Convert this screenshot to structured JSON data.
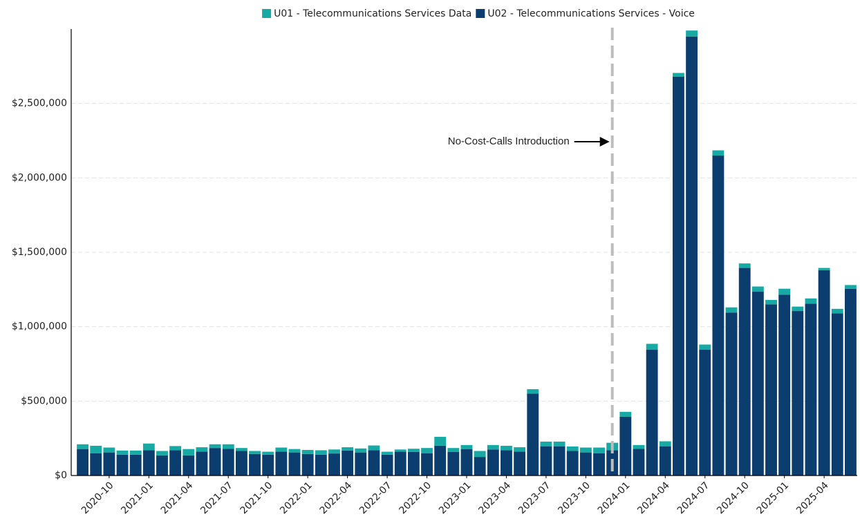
{
  "chart_data": {
    "type": "stacked-bar",
    "annotation": "No-Cost-Calls Introduction",
    "categories": [
      null,
      null,
      "2020-10",
      null,
      null,
      "2021-01",
      null,
      null,
      "2021-04",
      null,
      null,
      "2021-07",
      null,
      null,
      "2021-10",
      null,
      null,
      "2022-01",
      null,
      null,
      "2022-04",
      null,
      null,
      "2022-07",
      null,
      null,
      "2022-10",
      null,
      null,
      "2023-01",
      null,
      null,
      "2023-04",
      null,
      null,
      "2023-07",
      null,
      null,
      "2023-10",
      null,
      null,
      "2024-01",
      null,
      null,
      "2024-04",
      null,
      null,
      "2024-07",
      null,
      null,
      "2024-10",
      null,
      null,
      "2025-01",
      null,
      null,
      "2025-04",
      null,
      null
    ],
    "series": [
      {
        "name": "U01 - Telecommunications Services Data",
        "color": "#17aaa5",
        "values": [
          32000,
          50000,
          33000,
          28000,
          28000,
          45000,
          30000,
          28000,
          43000,
          30000,
          25000,
          30000,
          20000,
          20000,
          20000,
          28000,
          23000,
          27000,
          30000,
          27000,
          22000,
          27000,
          32000,
          20000,
          15000,
          22000,
          35000,
          60000,
          27000,
          27000,
          40000,
          30000,
          30000,
          30000,
          30000,
          33000,
          33000,
          30000,
          33000,
          38000,
          50000,
          33000,
          25000,
          40000,
          35000,
          25000,
          40000,
          35000,
          35000,
          35000,
          30000,
          35000,
          30000,
          40000,
          30000,
          35000,
          15000,
          30000,
          25000
        ]
      },
      {
        "name": "U02 - Telecommunications Services - Voice",
        "color": "#0b3d6e",
        "values": [
          178000,
          150000,
          155000,
          140000,
          140000,
          170000,
          135000,
          170000,
          135000,
          160000,
          185000,
          180000,
          165000,
          145000,
          140000,
          160000,
          155000,
          145000,
          140000,
          148000,
          168000,
          155000,
          170000,
          140000,
          160000,
          158000,
          150000,
          200000,
          158000,
          178000,
          125000,
          175000,
          170000,
          160000,
          550000,
          195000,
          195000,
          165000,
          155000,
          150000,
          170000,
          395000,
          180000,
          845000,
          195000,
          2680000,
          2950000,
          845000,
          2150000,
          1095000,
          1395000,
          1235000,
          1150000,
          1215000,
          1105000,
          1155000,
          1380000,
          1090000,
          1255000
        ]
      }
    ],
    "ylim": [
      0,
      3000000
    ],
    "yticks": [
      {
        "value": 0,
        "label": "$0"
      },
      {
        "value": 500000,
        "label": "$500,000"
      },
      {
        "value": 1000000,
        "label": "$1,000,000"
      },
      {
        "value": 1500000,
        "label": "$1,500,000"
      },
      {
        "value": 2000000,
        "label": "$2,000,000"
      },
      {
        "value": 2500000,
        "label": "$2,500,000"
      }
    ],
    "grid": true
  }
}
